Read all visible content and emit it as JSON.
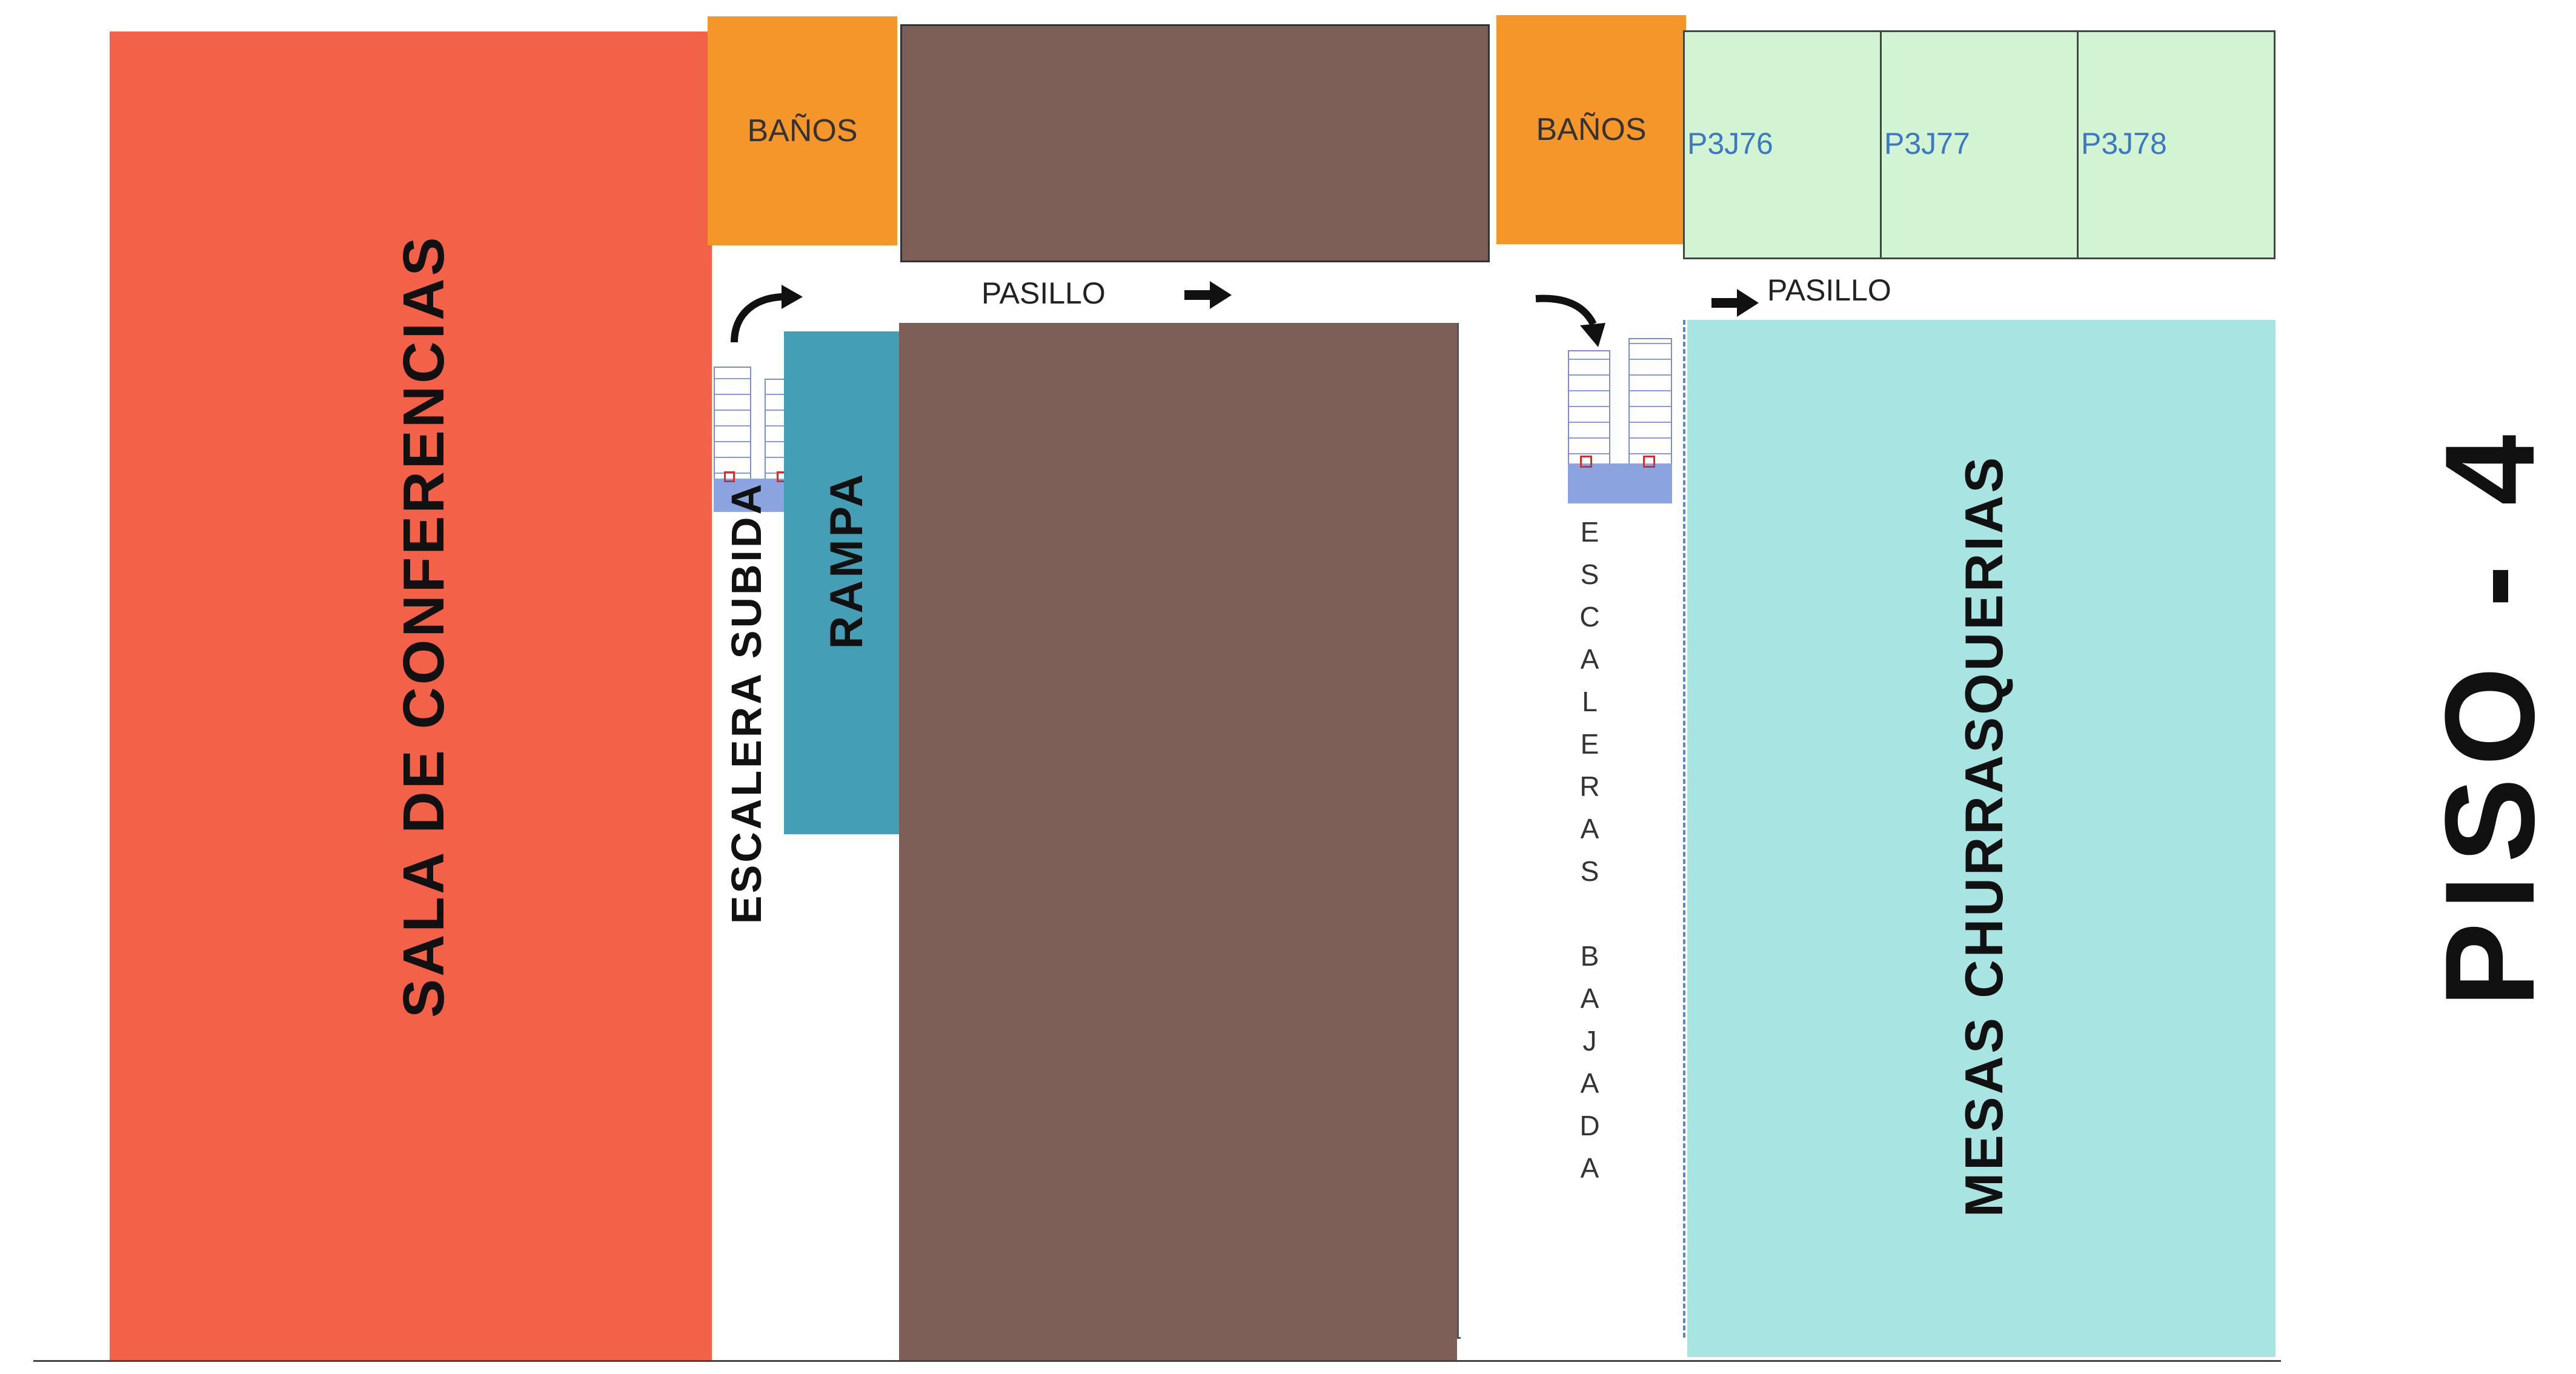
{
  "rooms": {
    "conference": "SALA DE CONFERENCIAS",
    "bathroom_left": "BAÑOS",
    "bathroom_right": "BAÑOS",
    "ramp": "RAMPA",
    "stairs_up": "ESCALERA SUBIDA",
    "stairs_down_letters": [
      "E",
      "S",
      "C",
      "A",
      "L",
      "E",
      "R",
      "A",
      "S",
      "",
      "B",
      "A",
      "J",
      "A",
      "D",
      "A"
    ],
    "tables": "MESAS CHURRASQUERIAS"
  },
  "shops": [
    "P3J76",
    "P3J77",
    "P3J78"
  ],
  "corridors": {
    "left": "PASILLO",
    "right": "PASILLO"
  },
  "floor_label": "PISO - 4",
  "colors": {
    "conference": "#f26148",
    "bathrooms": "#f5962a",
    "blocked": "#7e5f58",
    "shops": "#d3f4d2",
    "tables": "#a8e4e1",
    "ramp": "#449fb6"
  }
}
